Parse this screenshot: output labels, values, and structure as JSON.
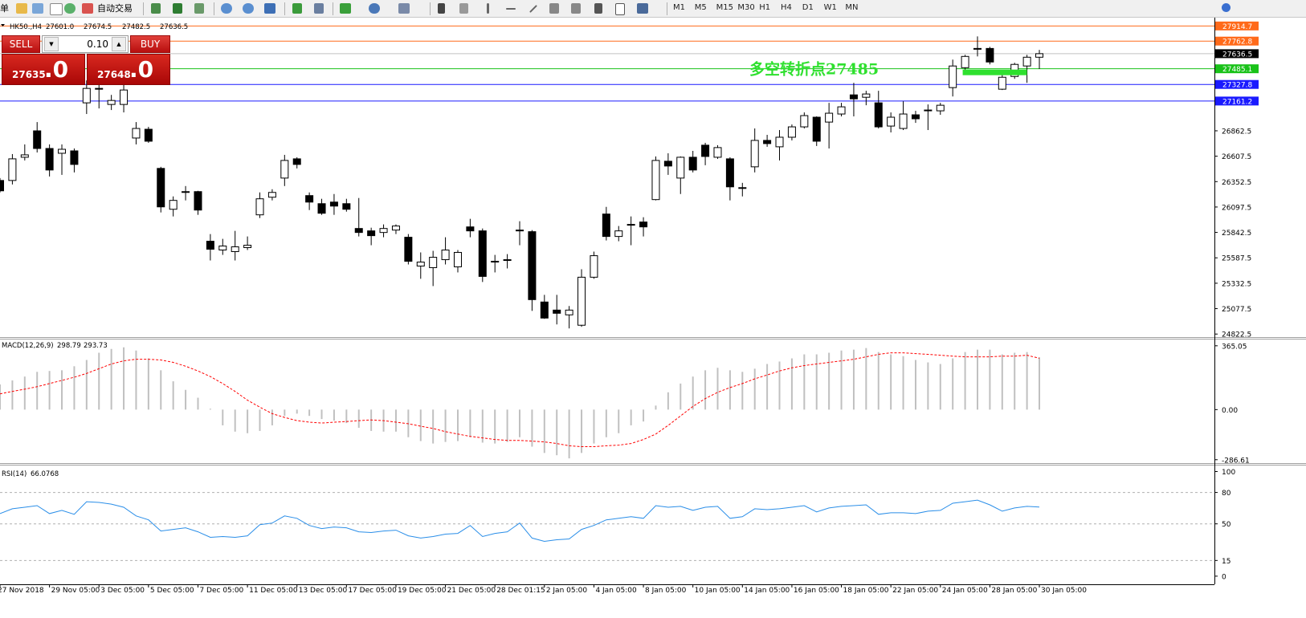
{
  "toolbar": {
    "menu": "单",
    "auto_trading": "自动交易",
    "timeframes": [
      "M1",
      "M5",
      "M15",
      "M30",
      "H1",
      "H4",
      "D1",
      "W1",
      "MN"
    ]
  },
  "trade_panel": {
    "sell": "SELL",
    "buy": "BUY",
    "volume": "0.10",
    "sell_price": "27635",
    "sell_fraction": ".0",
    "buy_price": "27648",
    "buy_fraction": ".0"
  },
  "chart_data": [
    {
      "type": "candlestick",
      "title": "HK50.,H4",
      "open_label": "27601.0",
      "categories": [
        "27 Nov 2018",
        null,
        null,
        null,
        "29 Nov 05:00",
        null,
        null,
        null,
        "3 Dec 05:00",
        null,
        null,
        null,
        "5 Dec 05:00",
        null,
        null,
        null,
        "7 Dec 05:00",
        null,
        null,
        null,
        "11 Dec 05:00",
        null,
        null,
        null,
        "13 Dec 05:00",
        null,
        null,
        null,
        "17 Dec 05:00",
        null,
        null,
        null,
        "19 Dec 05:00",
        null,
        null,
        null,
        "21 Dec 05:00",
        null,
        null,
        null,
        "28 Dec 01:15",
        null,
        null,
        null,
        "2 Jan 05:00",
        null,
        null,
        null,
        "4 Jan 05:00",
        null,
        null,
        null,
        "8 Jan 05:00",
        null,
        null,
        null,
        "10 Jan 05:00",
        null,
        null,
        null,
        "14 Jan 05:00",
        null,
        null,
        null,
        "16 Jan 05:00",
        null,
        null,
        null,
        "18 Jan 05:00",
        null,
        null,
        null,
        "22 Jan 05:00",
        null,
        null,
        null,
        "24 Jan 05:00",
        null,
        null,
        null,
        "28 Jan 05:00",
        null,
        null,
        null,
        "30 Jan 05:00"
      ],
      "open": [
        26364,
        26364,
        26597,
        26862,
        26685,
        26637,
        26661,
        27143,
        27280,
        27127,
        27127,
        26790,
        26878,
        26485,
        26075,
        26252,
        26252,
        25754,
        25666,
        25650,
        25690,
        26019,
        26196,
        26388,
        26581,
        26212,
        26131,
        26147,
        26131,
        25882,
        25858,
        25842,
        25866,
        25794,
        25505,
        25489,
        25569,
        25497,
        25898,
        25858,
        25553,
        25561,
        25858,
        25850,
        25144,
        25063,
        25015,
        24911,
        25393,
        26027,
        25802,
        25915,
        25947,
        26172,
        26557,
        26388,
        26597,
        26718,
        26597,
        26581,
        26292,
        26501,
        26766,
        26702,
        26798,
        26902,
        26999,
        26950,
        27031,
        27223,
        27199,
        27143,
        26910,
        26886,
        27023,
        27063,
        27063,
        27296,
        27496,
        27681,
        27689,
        27280,
        27408,
        27513,
        27601
      ],
      "high": [
        26388,
        26629,
        26726,
        26950,
        26726,
        26726,
        26685,
        27368,
        27328,
        27223,
        27328,
        26950,
        26902,
        26501,
        26204,
        26308,
        26260,
        25826,
        25778,
        25858,
        25802,
        26244,
        26276,
        26621,
        26597,
        26244,
        26180,
        26228,
        26180,
        26188,
        25890,
        25923,
        25923,
        25826,
        25642,
        25658,
        25794,
        25666,
        25979,
        25882,
        25617,
        25625,
        25955,
        25866,
        25216,
        25216,
        25104,
        25473,
        25650,
        26099,
        25907,
        26003,
        25995,
        26605,
        26637,
        26605,
        26661,
        26742,
        26718,
        26597,
        26340,
        26886,
        26822,
        26870,
        26926,
        27047,
        27007,
        27143,
        27143,
        27344,
        27264,
        27264,
        27047,
        27159,
        27063,
        27127,
        27143,
        27577,
        27625,
        27810,
        27705,
        27448,
        27545,
        27625,
        27674.5
      ],
      "low": [
        26244,
        26324,
        26565,
        26645,
        26404,
        26420,
        26445,
        27031,
        27087,
        27071,
        27047,
        26726,
        26742,
        26043,
        26003,
        26164,
        26019,
        25561,
        25617,
        25561,
        25666,
        25987,
        26164,
        26308,
        26485,
        26067,
        26019,
        26019,
        26051,
        25802,
        25714,
        25794,
        25826,
        25521,
        25377,
        25304,
        25521,
        25441,
        25794,
        25345,
        25441,
        25481,
        25714,
        25055,
        24975,
        24919,
        24879,
        24895,
        25377,
        25762,
        25754,
        25714,
        25802,
        26164,
        26420,
        26228,
        26445,
        26517,
        26581,
        26164,
        26204,
        26445,
        26702,
        26565,
        26766,
        26886,
        26710,
        26685,
        27007,
        27007,
        27119,
        26886,
        26846,
        26870,
        26942,
        26870,
        27023,
        27207,
        27448,
        27609,
        27529,
        27272,
        27384,
        27344,
        27482.5
      ],
      "close": [
        26260,
        26581,
        26621,
        26685,
        26469,
        26677,
        26525,
        27288,
        27288,
        27167,
        27272,
        26886,
        26758,
        26099,
        26164,
        26244,
        26067,
        25674,
        25706,
        25698,
        25714,
        26180,
        26244,
        26565,
        26525,
        26147,
        26035,
        26107,
        26075,
        25842,
        25810,
        25882,
        25907,
        25553,
        25545,
        25593,
        25666,
        25642,
        25858,
        25401,
        25545,
        25569,
        25866,
        25168,
        24983,
        25031,
        25063,
        25393,
        25609,
        25802,
        25858,
        25923,
        25898,
        26565,
        26509,
        26597,
        26469,
        26605,
        26694,
        26300,
        26284,
        26766,
        26734,
        26798,
        26902,
        27015,
        26758,
        27039,
        27103,
        27183,
        27232,
        26902,
        26999,
        27031,
        26983,
        27071,
        27119,
        27513,
        27609,
        27689,
        27553,
        27400,
        27529,
        27601,
        27636.5
      ],
      "up_color": "#ffffff",
      "down_color": "#000000",
      "ylim": [
        24800,
        27990
      ],
      "yticks": [
        26862.5,
        26607.5,
        26352.5,
        26097.5,
        25842.5,
        25587.5,
        25332.5,
        25077.5,
        24822.5
      ],
      "hlines": [
        {
          "value": 27914.7,
          "color": "#ff6a1a"
        },
        {
          "value": 27762.8,
          "color": "#ff6a1a"
        },
        {
          "value": 27485.1,
          "color": "#19c219"
        },
        {
          "value": 27327.8,
          "color": "#1a1aff"
        },
        {
          "value": 27161.2,
          "color": "#1a1aff"
        }
      ],
      "annotation": "多空转折点27485",
      "annotation_color": "#2ee02e"
    },
    {
      "type": "macd",
      "title": "MACD(12,26,9)",
      "histogram": [
        144,
        167,
        189,
        216,
        221,
        225,
        248,
        284,
        325,
        347,
        356,
        338,
        293,
        225,
        162,
        113,
        68,
        5,
        -90,
        -126,
        -135,
        -122,
        -90,
        -36,
        -23,
        -36,
        -54,
        -63,
        -77,
        -104,
        -122,
        -126,
        -126,
        -158,
        -180,
        -194,
        -185,
        -180,
        -158,
        -189,
        -194,
        -185,
        -158,
        -212,
        -248,
        -261,
        -279,
        -248,
        -194,
        -158,
        -135,
        -90,
        -68,
        23,
        99,
        149,
        189,
        225,
        239,
        225,
        216,
        234,
        261,
        275,
        293,
        316,
        316,
        325,
        338,
        343,
        352,
        329,
        316,
        306,
        284,
        270,
        261,
        293,
        329,
        343,
        343,
        316,
        325,
        329,
        298.79
      ],
      "signal": [
        90,
        104,
        117,
        131,
        149,
        167,
        185,
        207,
        234,
        261,
        279,
        288,
        288,
        284,
        270,
        248,
        221,
        189,
        149,
        104,
        54,
        14,
        -23,
        -45,
        -63,
        -72,
        -77,
        -72,
        -68,
        -63,
        -59,
        -63,
        -72,
        -81,
        -95,
        -108,
        -126,
        -140,
        -153,
        -162,
        -171,
        -176,
        -176,
        -180,
        -185,
        -194,
        -207,
        -212,
        -212,
        -207,
        -203,
        -194,
        -171,
        -140,
        -90,
        -36,
        18,
        63,
        99,
        126,
        149,
        176,
        198,
        221,
        239,
        252,
        261,
        270,
        279,
        288,
        302,
        316,
        325,
        325,
        320,
        316,
        311,
        306,
        302,
        302,
        302,
        306,
        306,
        311,
        293.73
      ],
      "histogram_color": "#c0c0c0",
      "signal_color": "#ff0000",
      "ylim": [
        -306,
        401
      ],
      "yticks": [
        365.05,
        {
          "value": 0,
          "label": "0.00"
        },
        -286.61
      ]
    },
    {
      "type": "line",
      "title": "RSI(14)",
      "values": [
        59.8,
        64.4,
        65.9,
        67.4,
        59.8,
        62.9,
        59.1,
        71.2,
        70.5,
        68.9,
        65.9,
        57.6,
        53.8,
        43.2,
        44.7,
        46.2,
        42.4,
        37.1,
        37.9,
        37.1,
        38.6,
        49.2,
        50.8,
        57.6,
        55.3,
        48.5,
        45.5,
        47.0,
        46.2,
        42.4,
        41.7,
        43.2,
        43.9,
        38.6,
        36.4,
        37.9,
        40.2,
        40.9,
        48.5,
        37.9,
        40.9,
        42.4,
        50.8,
        36.4,
        33.3,
        34.8,
        35.6,
        44.7,
        48.5,
        53.8,
        55.3,
        56.8,
        55.3,
        67.4,
        65.9,
        66.7,
        62.9,
        65.9,
        66.7,
        55.3,
        56.8,
        64.4,
        63.6,
        64.4,
        65.9,
        67.4,
        61.4,
        65.2,
        66.7,
        67.4,
        68.2,
        59.1,
        60.6,
        60.6,
        59.8,
        62.1,
        62.9,
        69.7,
        71.2,
        72.7,
        68.2,
        62.1,
        65.2,
        66.7,
        66.0768
      ],
      "color": "#2a8ee8",
      "ylim": [
        -7,
        105
      ],
      "yticks": [
        100,
        80,
        50,
        15,
        0
      ]
    }
  ]
}
